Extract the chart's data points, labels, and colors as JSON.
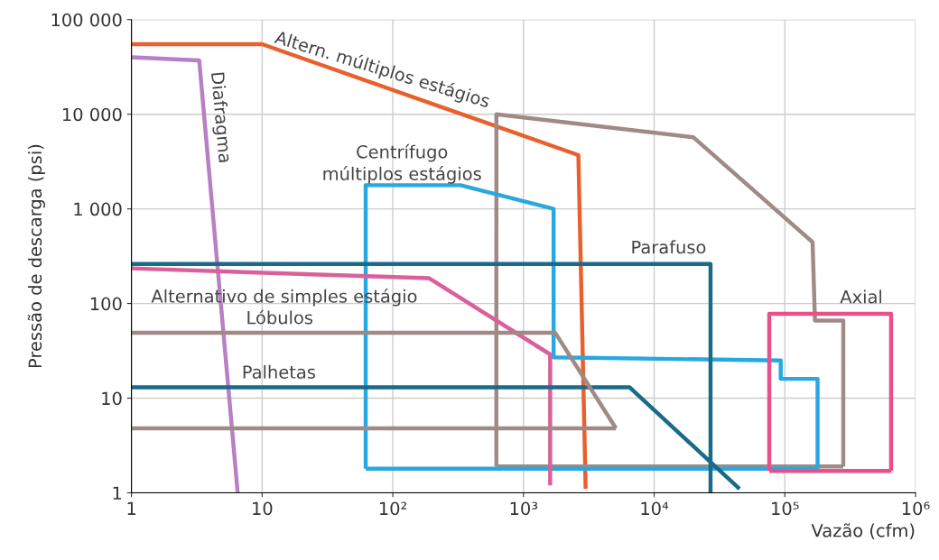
{
  "chart_data": {
    "type": "line",
    "xlabel": "Vazão (cfm)",
    "ylabel": "Pressão de descarga (psi)",
    "log": "xy",
    "grid": true,
    "marker": "none",
    "line_style": "solid",
    "xlim": [
      1,
      1000000
    ],
    "ylim": [
      1,
      100000
    ],
    "xticks": [
      1,
      10,
      {
        "value": 100,
        "label": "10²"
      },
      {
        "value": 1000,
        "label": "10³"
      },
      {
        "value": 10000,
        "label": "10⁴"
      },
      {
        "value": 100000,
        "label": "10⁵"
      },
      {
        "value": 1000000,
        "label": "10⁶"
      }
    ],
    "yticks": [
      1,
      10,
      100,
      {
        "value": 1000,
        "label": "1 000"
      },
      {
        "value": 10000,
        "label": "10 000"
      },
      {
        "value": 100000,
        "label": "100 000"
      }
    ],
    "series": [
      {
        "name": "Altern. múltiplos estágios",
        "color": "#e8602c",
        "x": [
          1,
          10,
          2630,
          2990
        ],
        "values": [
          55000,
          55000,
          3700,
          1.1
        ]
      },
      {
        "name": "Diafragma",
        "color": "#b77fc4",
        "x": [
          1,
          3.3,
          6.5
        ],
        "values": [
          40000,
          37000,
          1
        ]
      },
      {
        "color": "#a08a86",
        "x": [
          620,
          620,
          20000,
          163000,
          170000,
          280000,
          280000
        ],
        "values": [
          1.9,
          10000,
          5700,
          445,
          66,
          66,
          1.9
        ]
      },
      {
        "color": "#a08a86",
        "x": [
          620,
          280000
        ],
        "values": [
          1.9,
          1.9
        ]
      },
      {
        "name": "Centrífugo\nmúltiplos estágios",
        "color": "#29a8e0",
        "x": [
          62,
          62,
          330,
          1700,
          1700,
          93000,
          93000,
          178000,
          178000
        ],
        "values": [
          1.8,
          1780,
          1780,
          1000,
          27,
          25,
          16,
          16,
          1.8
        ]
      },
      {
        "color": "#29a8e0",
        "x": [
          62,
          178000
        ],
        "values": [
          1.8,
          1.8
        ]
      },
      {
        "name": "Alternativo de simples estágio",
        "color": "#d9609a",
        "x": [
          1,
          190,
          1600,
          1600
        ],
        "values": [
          235,
          185,
          29,
          1.2
        ]
      },
      {
        "name": "Parafuso",
        "color": "#1a6a8a",
        "x": [
          1,
          27000,
          27000
        ],
        "values": [
          262,
          262,
          1
        ]
      },
      {
        "name": "Palhetas",
        "color": "#1a6a8a",
        "x": [
          1,
          6500,
          45000
        ],
        "values": [
          13,
          13,
          1.1
        ]
      },
      {
        "name": "Lóbulos",
        "color": "#a08a86",
        "x": [
          1,
          1750,
          5100
        ],
        "values": [
          49,
          49,
          4.8
        ]
      },
      {
        "color": "#a08a86",
        "x": [
          1,
          5100
        ],
        "values": [
          4.8,
          4.8
        ]
      },
      {
        "name": "Axial",
        "color": "#e8508a",
        "x": [
          76000,
          76000,
          650000,
          650000
        ],
        "values": [
          1.7,
          78,
          78,
          1.7
        ]
      },
      {
        "color": "#e8508a",
        "x": [
          76000,
          650000
        ],
        "values": [
          1.7,
          1.7
        ]
      }
    ]
  }
}
